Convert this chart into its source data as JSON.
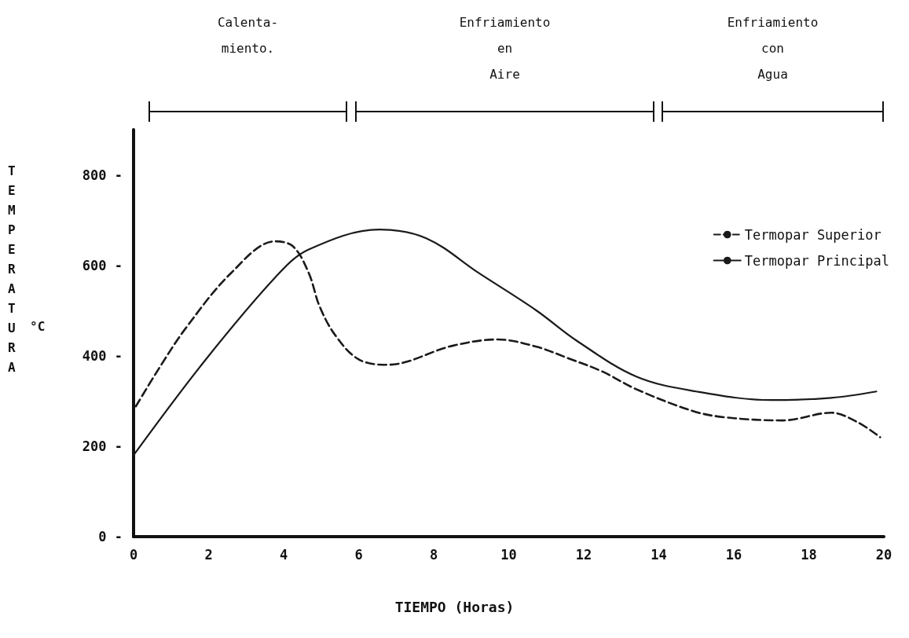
{
  "chart_data": {
    "type": "line",
    "xlabel": "TIEMPO (Horas)",
    "ylabel": "TEMPERATURA",
    "annotations": [
      "°C",
      "Calenta-\nmiento.",
      "Enfriamiento\nen\nAire",
      "Enfriamiento\ncon\nAgua"
    ],
    "xlim": [
      0,
      20
    ],
    "xticks": [
      0,
      2,
      4,
      6,
      8,
      10,
      12,
      14,
      16,
      18,
      20
    ],
    "ylim": [
      0,
      900
    ],
    "yticks": [
      {
        "value": 0,
        "label": "0 -"
      },
      {
        "value": 200,
        "label": "200 -"
      },
      {
        "value": 400,
        "label": "400 -"
      },
      {
        "value": 600,
        "label": "600 -"
      },
      {
        "value": 800,
        "label": "800 -"
      }
    ],
    "series": [
      {
        "name": "Termopar Superior",
        "color": "#1a1a1a",
        "line_style": "dashed",
        "x": [
          0.06,
          0.7,
          1.4,
          2.6,
          3.77,
          4.25,
          4.67,
          4.96,
          5.38,
          6.0,
          6.76,
          8.5,
          9.7,
          10.74,
          11.6,
          12.5,
          13.4,
          14.9,
          15.75,
          17.3,
          18.6,
          19.3,
          19.9
        ],
        "values": [
          288,
          375,
          462,
          583,
          653,
          642,
          583,
          509,
          445,
          392,
          380,
          422,
          436,
          420,
          394,
          365,
          326,
          278,
          264,
          257,
          274,
          253,
          220
        ]
      },
      {
        "name": "Termopar Principal",
        "color": "#1a1a1a",
        "line_style": "solid",
        "x": [
          0,
          1.88,
          3.83,
          4.67,
          6.55,
          7.8,
          9.2,
          10.74,
          11.8,
          13.4,
          15.0,
          17.0,
          18.6,
          19.8
        ],
        "values": [
          180,
          387,
          578,
          635,
          679,
          660,
          583,
          500,
          434,
          354,
          321,
          302,
          307,
          321
        ]
      }
    ],
    "legend": "top right",
    "grid": false,
    "marker": "none"
  }
}
